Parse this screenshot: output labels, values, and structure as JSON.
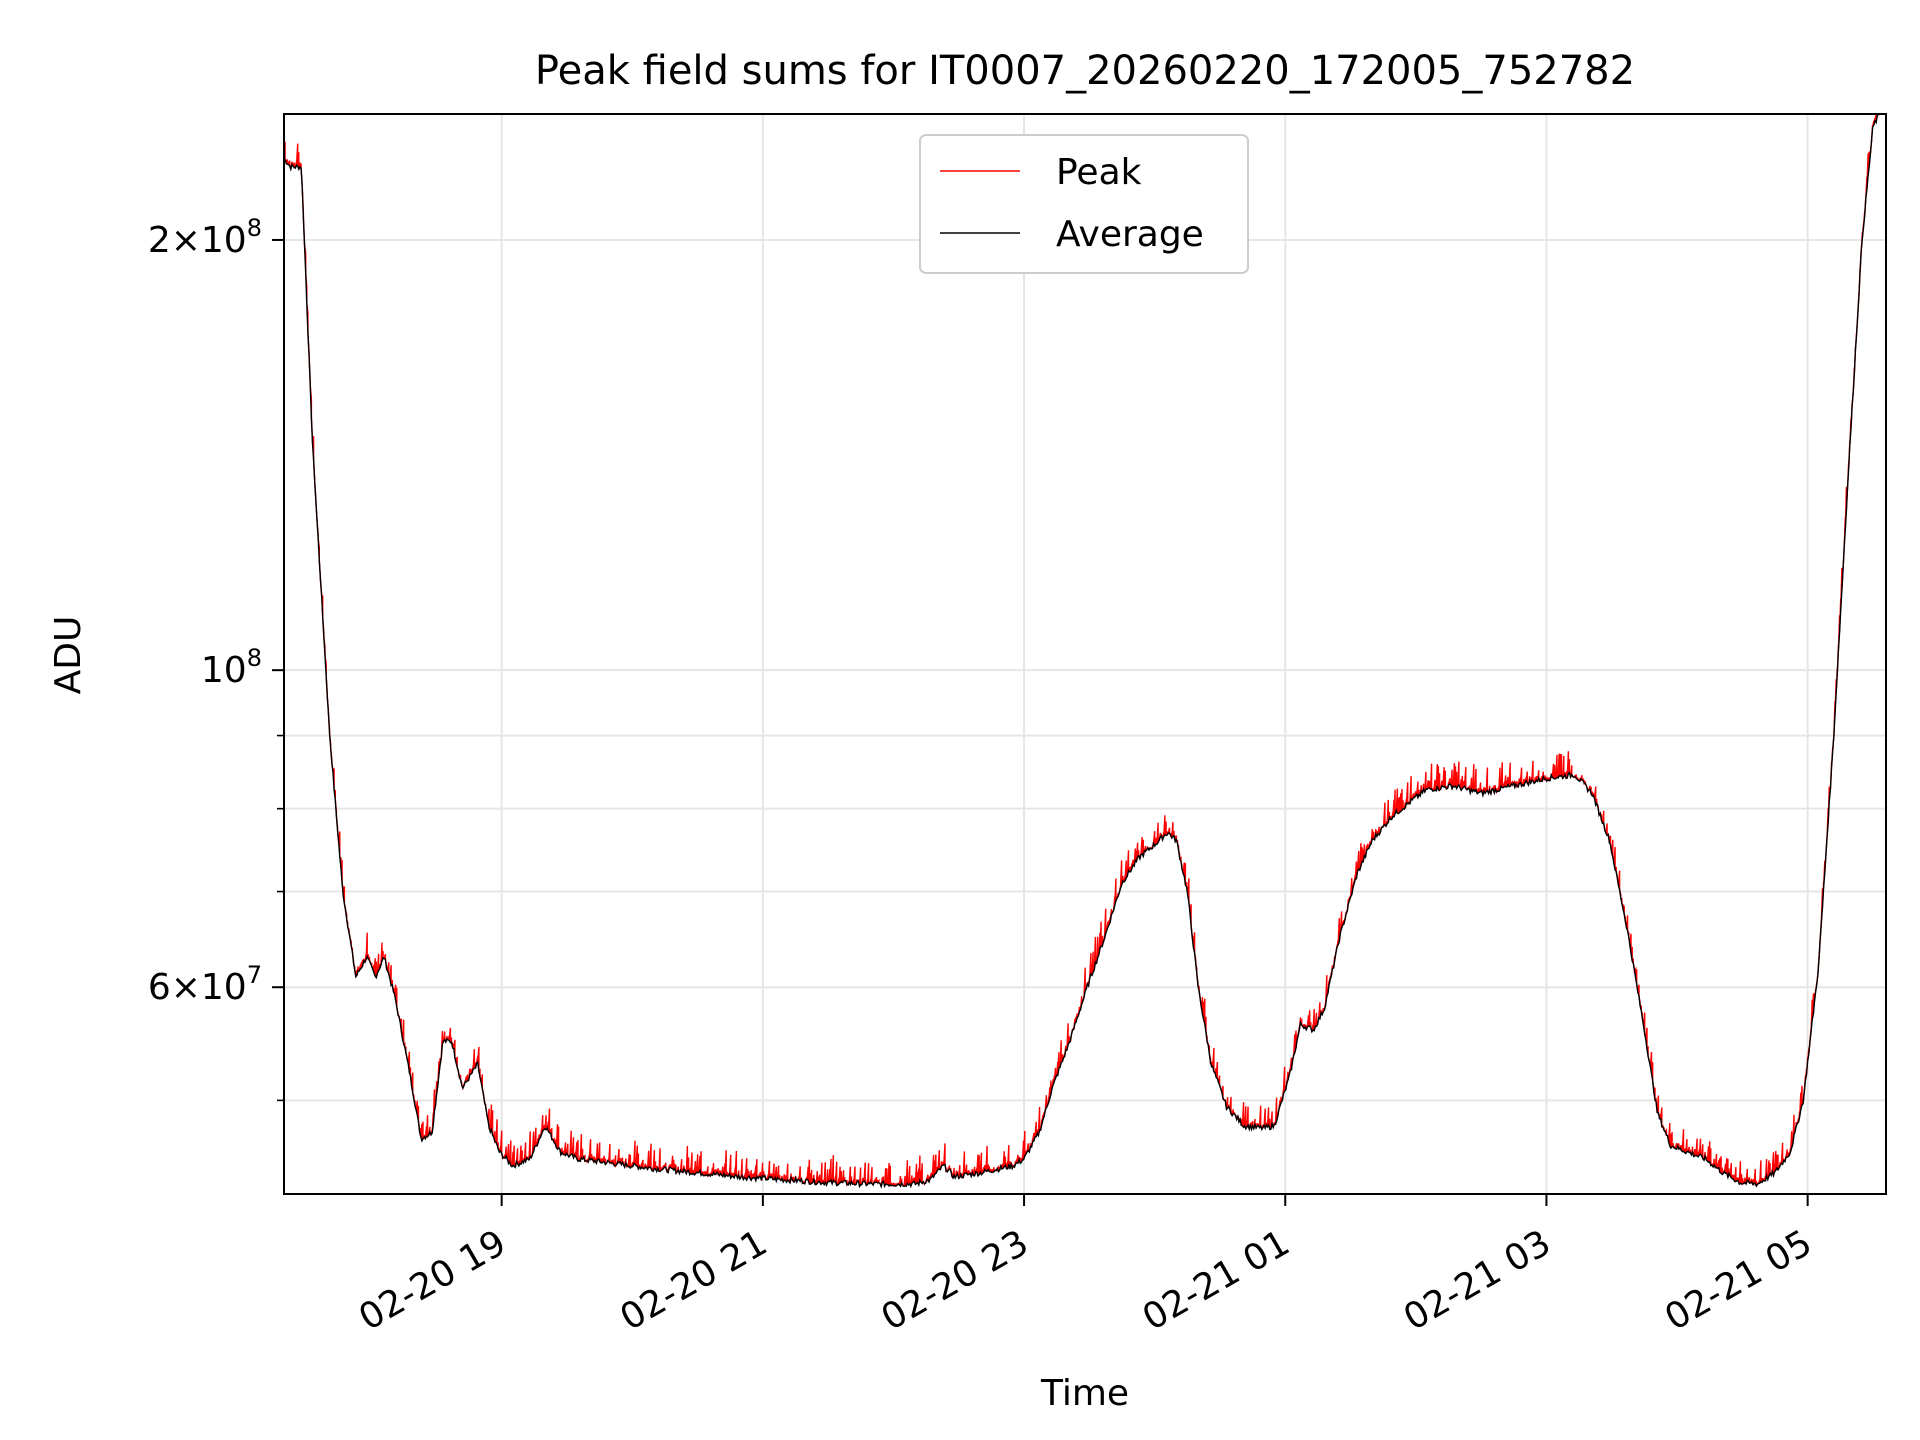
{
  "chart_data": {
    "type": "line",
    "title": "Peak field sums for IT0007_20260220_172005_752782",
    "xlabel": "Time",
    "ylabel": "ADU",
    "yscale": "log",
    "grid": true,
    "legend_position": "top-center",
    "x_ticks": [
      {
        "t": "2026-02-20 19:00",
        "label": "02-20 19"
      },
      {
        "t": "2026-02-20 21:00",
        "label": "02-20 21"
      },
      {
        "t": "2026-02-20 23:00",
        "label": "02-20 23"
      },
      {
        "t": "2026-02-21 01:00",
        "label": "02-21 01"
      },
      {
        "t": "2026-02-21 03:00",
        "label": "02-21 03"
      },
      {
        "t": "2026-02-21 05:00",
        "label": "02-21 05"
      }
    ],
    "y_ticks": [
      {
        "value": 60000000,
        "mantissa": "6",
        "exponent": "7"
      },
      {
        "value": 100000000,
        "mantissa": "",
        "exponent": "8"
      },
      {
        "value": 200000000,
        "mantissa": "2",
        "exponent": "8"
      }
    ],
    "y_minor_ticks": [
      40000000,
      50000000,
      70000000,
      80000000,
      90000000,
      300000000
    ],
    "xlim": [
      "2026-02-20 17:20",
      "2026-02-21 05:36"
    ],
    "ylim": [
      43000000,
      245000000
    ],
    "series": [
      {
        "name": "Peak",
        "color": "#ff0000"
      },
      {
        "name": "Average",
        "color": "#000000"
      }
    ],
    "average_points": [
      [
        "2026-02-20 17:20",
        228000000
      ],
      [
        "2026-02-20 17:23",
        225000000
      ],
      [
        "2026-02-20 17:28",
        225000000
      ],
      [
        "2026-02-20 17:33",
        145000000
      ],
      [
        "2026-02-20 17:41",
        90000000
      ],
      [
        "2026-02-20 17:47",
        70000000
      ],
      [
        "2026-02-20 17:53",
        61000000
      ],
      [
        "2026-02-20 17:58",
        63000000
      ],
      [
        "2026-02-20 18:02",
        61000000
      ],
      [
        "2026-02-20 18:06",
        63000000
      ],
      [
        "2026-02-20 18:11",
        59000000
      ],
      [
        "2026-02-20 18:18",
        52000000
      ],
      [
        "2026-02-20 18:23",
        47000000
      ],
      [
        "2026-02-20 18:28",
        47500000
      ],
      [
        "2026-02-20 18:33",
        55000000
      ],
      [
        "2026-02-20 18:37",
        55000000
      ],
      [
        "2026-02-20 18:42",
        51000000
      ],
      [
        "2026-02-20 18:49",
        53000000
      ],
      [
        "2026-02-20 18:54",
        48000000
      ],
      [
        "2026-02-20 18:59",
        46000000
      ],
      [
        "2026-02-20 19:05",
        45000000
      ],
      [
        "2026-02-20 19:13",
        45500000
      ],
      [
        "2026-02-20 19:20",
        48000000
      ],
      [
        "2026-02-20 19:27",
        46000000
      ],
      [
        "2026-02-20 19:35",
        45500000
      ],
      [
        "2026-02-20 19:50",
        45200000
      ],
      [
        "2026-02-20 20:10",
        44800000
      ],
      [
        "2026-02-20 20:30",
        44500000
      ],
      [
        "2026-02-20 20:50",
        44200000
      ],
      [
        "2026-02-20 21:10",
        44000000
      ],
      [
        "2026-02-20 21:30",
        43800000
      ],
      [
        "2026-02-20 21:50",
        43700000
      ],
      [
        "2026-02-20 22:10",
        43700000
      ],
      [
        "2026-02-20 22:17",
        44000000
      ],
      [
        "2026-02-20 22:23",
        45000000
      ],
      [
        "2026-02-20 22:28",
        44200000
      ],
      [
        "2026-02-20 22:40",
        44500000
      ],
      [
        "2026-02-20 22:55",
        45000000
      ],
      [
        "2026-02-20 23:00",
        45500000
      ],
      [
        "2026-02-20 23:07",
        47500000
      ],
      [
        "2026-02-20 23:13",
        51000000
      ],
      [
        "2026-02-20 23:21",
        55000000
      ],
      [
        "2026-02-20 23:29",
        60000000
      ],
      [
        "2026-02-20 23:37",
        65000000
      ],
      [
        "2026-02-20 23:45",
        71000000
      ],
      [
        "2026-02-20 23:53",
        74000000
      ],
      [
        "2026-02-21 00:00",
        75500000
      ],
      [
        "2026-02-21 00:06",
        77000000
      ],
      [
        "2026-02-21 00:10",
        76000000
      ],
      [
        "2026-02-21 00:15",
        70000000
      ],
      [
        "2026-02-21 00:20",
        60000000
      ],
      [
        "2026-02-21 00:26",
        53000000
      ],
      [
        "2026-02-21 00:33",
        49500000
      ],
      [
        "2026-02-21 00:41",
        48000000
      ],
      [
        "2026-02-21 00:50",
        47800000
      ],
      [
        "2026-02-21 00:55",
        48000000
      ],
      [
        "2026-02-21 01:02",
        52000000
      ],
      [
        "2026-02-21 01:07",
        56500000
      ],
      [
        "2026-02-21 01:13",
        56000000
      ],
      [
        "2026-02-21 01:18",
        58000000
      ],
      [
        "2026-02-21 01:25",
        65000000
      ],
      [
        "2026-02-21 01:33",
        72000000
      ],
      [
        "2026-02-21 01:40",
        76000000
      ],
      [
        "2026-02-21 01:49",
        79000000
      ],
      [
        "2026-02-21 01:58",
        81000000
      ],
      [
        "2026-02-21 02:05",
        82500000
      ],
      [
        "2026-02-21 02:17",
        83000000
      ],
      [
        "2026-02-21 02:30",
        82000000
      ],
      [
        "2026-02-21 02:45",
        83000000
      ],
      [
        "2026-02-21 03:00",
        84000000
      ],
      [
        "2026-02-21 03:13",
        84500000
      ],
      [
        "2026-02-21 03:21",
        82000000
      ],
      [
        "2026-02-21 03:29",
        76000000
      ],
      [
        "2026-02-21 03:37",
        66000000
      ],
      [
        "2026-02-21 03:45",
        56000000
      ],
      [
        "2026-02-21 03:51",
        49000000
      ],
      [
        "2026-02-21 03:57",
        46500000
      ],
      [
        "2026-02-21 04:05",
        46000000
      ],
      [
        "2026-02-21 04:13",
        45500000
      ],
      [
        "2026-02-21 04:21",
        44500000
      ],
      [
        "2026-02-21 04:29",
        43800000
      ],
      [
        "2026-02-21 04:37",
        43700000
      ],
      [
        "2026-02-21 04:45",
        44500000
      ],
      [
        "2026-02-21 04:52",
        46000000
      ],
      [
        "2026-02-21 04:58",
        50000000
      ],
      [
        "2026-02-21 05:05",
        62000000
      ],
      [
        "2026-02-21 05:12",
        90000000
      ],
      [
        "2026-02-21 05:19",
        140000000
      ],
      [
        "2026-02-21 05:25",
        200000000
      ],
      [
        "2026-02-21 05:30",
        240000000
      ],
      [
        "2026-02-21 05:33",
        245000000
      ]
    ]
  }
}
